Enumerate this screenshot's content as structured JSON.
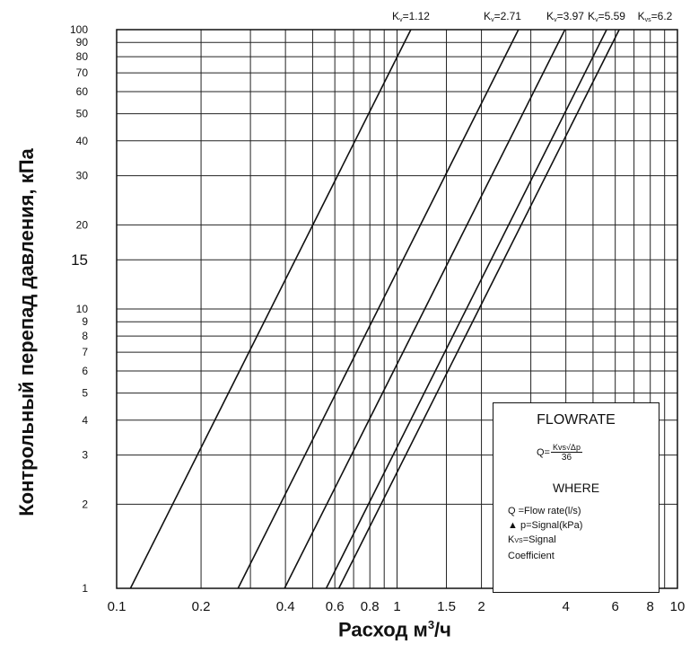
{
  "chart_data": {
    "type": "line",
    "x_scale": "log",
    "y_scale": "log",
    "xlim": [
      0.1,
      10
    ],
    "ylim": [
      1,
      100
    ],
    "xlabel": "Расход м³/ч",
    "ylabel": "Контрольный перепад давления, кПа",
    "x_ticks": [
      "0.1",
      "0.2",
      "0.4",
      "0.6",
      "0.8",
      "1",
      "1.5",
      "2",
      "4",
      "6",
      "8",
      "10"
    ],
    "x_tick_values": [
      0.1,
      0.2,
      0.4,
      0.6,
      0.8,
      1,
      1.5,
      2,
      4,
      6,
      8,
      10
    ],
    "x_grid_values": [
      0.1,
      0.2,
      0.3,
      0.4,
      0.5,
      0.6,
      0.7,
      0.8,
      0.9,
      1,
      1.5,
      2,
      3,
      4,
      5,
      6,
      7,
      8,
      9,
      10
    ],
    "y_ticks": [
      "1",
      "2",
      "3",
      "4",
      "5",
      "6",
      "7",
      "8",
      "9",
      "10",
      "15",
      "20",
      "30",
      "40",
      "50",
      "60",
      "70",
      "80",
      "90",
      "100"
    ],
    "y_tick_values": [
      1,
      2,
      3,
      4,
      5,
      6,
      7,
      8,
      9,
      10,
      15,
      20,
      30,
      40,
      50,
      60,
      70,
      80,
      90,
      100
    ],
    "grid": true,
    "series": [
      {
        "name": "Kv=1.12",
        "kv": 1.12,
        "points": [
          [
            0.112,
            1
          ],
          [
            1.12,
            100
          ]
        ]
      },
      {
        "name": "Kv=2.71",
        "kv": 2.71,
        "points": [
          [
            0.271,
            1
          ],
          [
            2.71,
            100
          ]
        ]
      },
      {
        "name": "Kv=3.97",
        "kv": 3.97,
        "points": [
          [
            0.397,
            1
          ],
          [
            3.97,
            100
          ]
        ]
      },
      {
        "name": "Kv=5.59",
        "kv": 5.59,
        "points": [
          [
            0.559,
            1
          ],
          [
            5.59,
            100
          ]
        ]
      },
      {
        "name": "Kvs=6.2",
        "kv": 6.2,
        "points": [
          [
            0.62,
            1
          ],
          [
            6.2,
            100
          ]
        ]
      }
    ],
    "series_labels": [
      {
        "prefix": "K",
        "sub": "v",
        "value": "=1.12"
      },
      {
        "prefix": "K",
        "sub": "v",
        "value": "=2.71"
      },
      {
        "prefix": "K",
        "sub": "v",
        "value": "=3.97"
      },
      {
        "prefix": "K",
        "sub": "v",
        "value": "=5.59"
      },
      {
        "prefix": "K",
        "sub": "vs",
        "value": "=6.2"
      }
    ]
  },
  "labels": {
    "ylabel": "Контрольный перепад давления, кПа",
    "xlabel_main": "Расход м",
    "xlabel_sup": "3",
    "xlabel_end": "/ч"
  },
  "legend": {
    "title": "FLOWRATE",
    "formula_lhs": "Q=",
    "formula_num": "Kvs√Δp",
    "formula_den": "36",
    "where": "WHERE",
    "defs": [
      "Q  =Flow rate(l/s)",
      "p=Signal(kPa)",
      "=Signal",
      "Coefficient"
    ],
    "def_delta_symbol": "▲",
    "def_kvs_prefix": "K",
    "def_kvs_sub": "VS"
  }
}
